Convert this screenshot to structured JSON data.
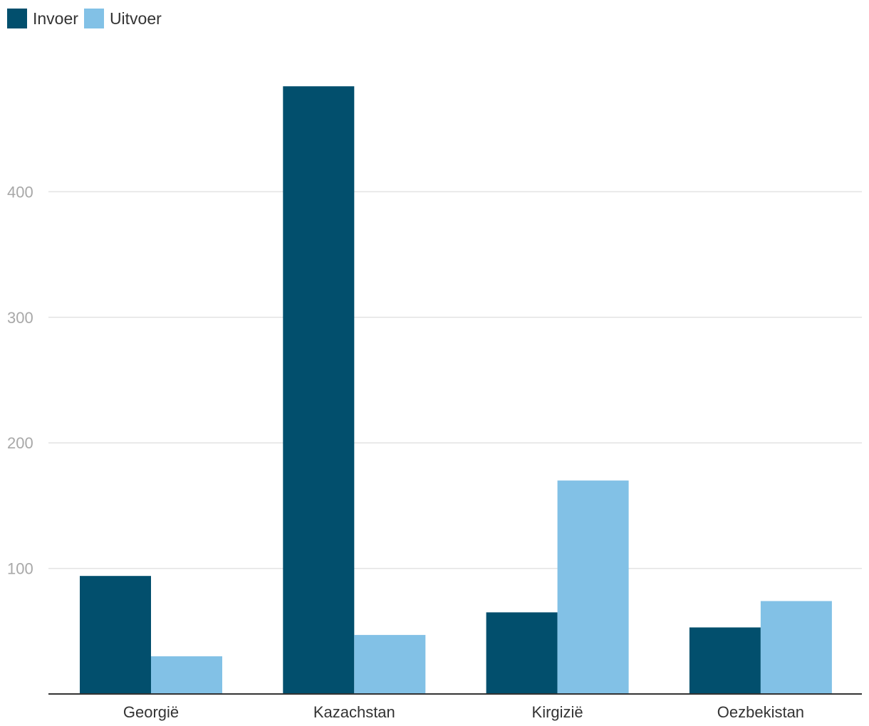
{
  "chart_data": {
    "type": "bar",
    "categories": [
      "Georgië",
      "Kazachstan",
      "Kirgizië",
      "Oezbekistan"
    ],
    "series": [
      {
        "name": "Invoer",
        "color": "#024f6d",
        "values": [
          94,
          484,
          65,
          53
        ]
      },
      {
        "name": "Uitvoer",
        "color": "#82c1e6",
        "values": [
          30,
          47,
          170,
          74
        ]
      }
    ],
    "yticks": [
      100,
      200,
      300,
      400
    ],
    "ylim": [
      0,
      500
    ],
    "grid": true,
    "legend_position": "top-left",
    "title": "",
    "xlabel": "",
    "ylabel": ""
  }
}
